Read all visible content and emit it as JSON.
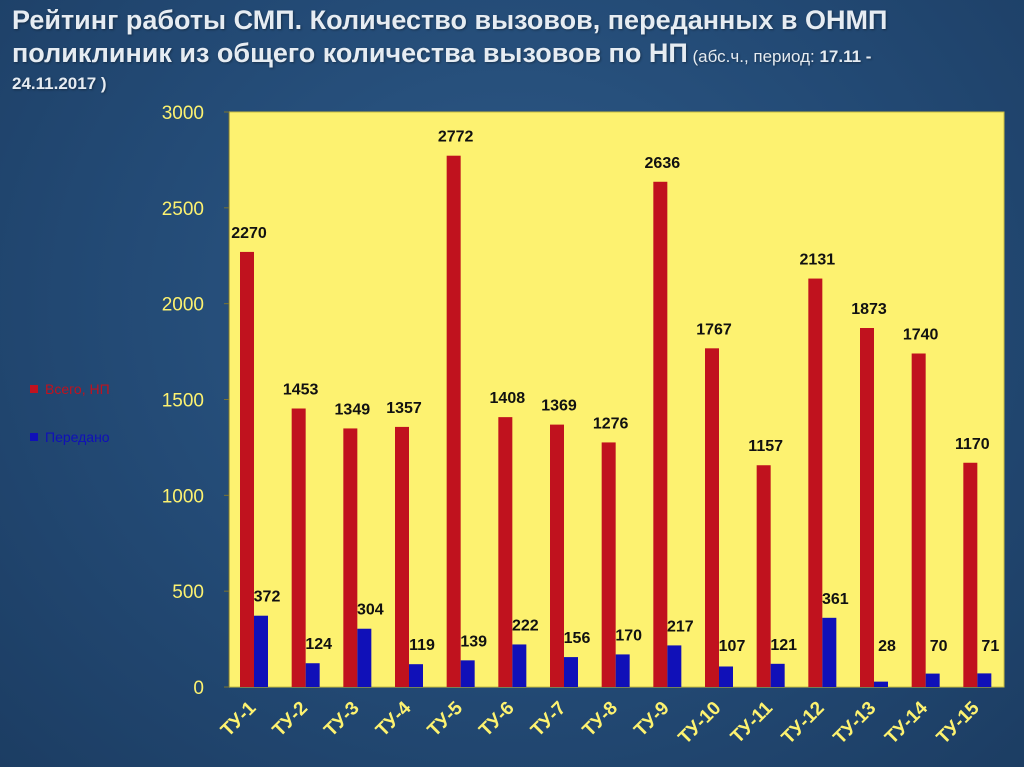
{
  "title": {
    "main": "Рейтинг работы СМП. Количество вызовов, переданных в ОНМП поликлиник из общего количества вызовов по НП",
    "paren_open": " (абс.ч., период: ",
    "period_start": "17.11 -",
    "period_end": "24.11.2017",
    "paren_close": " )"
  },
  "colors": {
    "plot_bg": "#fdf270",
    "series_total": "#c0121e",
    "series_passed": "#1010b8",
    "axis_text": "#fdf270",
    "label_text": "#111111"
  },
  "chart_data": {
    "type": "bar",
    "categories": [
      "ТУ-1",
      "ТУ-2",
      "ТУ-3",
      "ТУ-4",
      "ТУ-5",
      "ТУ-6",
      "ТУ-7",
      "ТУ-8",
      "ТУ-9",
      "ТУ-10",
      "ТУ-11",
      "ТУ-12",
      "ТУ-13",
      "ТУ-14",
      "ТУ-15"
    ],
    "series": [
      {
        "name": "Всего, НП",
        "values": [
          2270,
          1453,
          1349,
          1357,
          2772,
          1408,
          1369,
          1276,
          2636,
          1767,
          1157,
          2131,
          1873,
          1740,
          1170
        ]
      },
      {
        "name": "Передано",
        "values": [
          372,
          124,
          304,
          119,
          139,
          222,
          156,
          170,
          217,
          107,
          121,
          361,
          28,
          70,
          71
        ]
      }
    ],
    "ylim": [
      0,
      3000
    ],
    "yticks": [
      0,
      500,
      1000,
      1500,
      2000,
      2500,
      3000
    ],
    "grid": false,
    "legend_position": "left",
    "data_labels": true
  }
}
